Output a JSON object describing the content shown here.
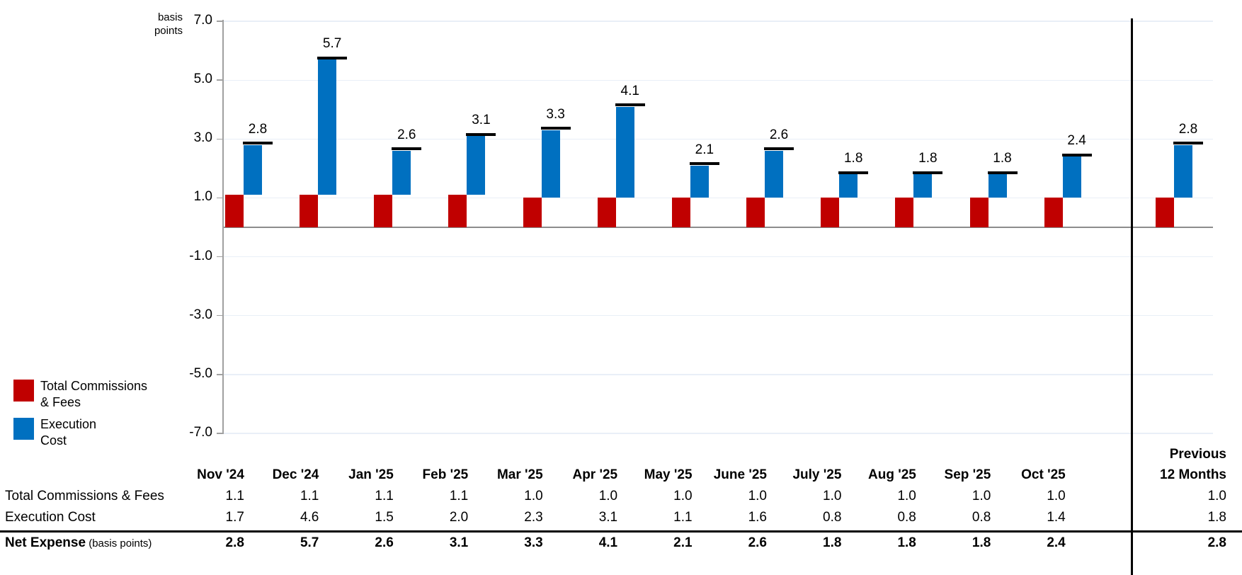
{
  "colors": {
    "commissions": "#C00000",
    "execution": "#0070C0",
    "gridline": "#E9EFF7",
    "axis": "#A0A0A0",
    "zero_line": "#8C8C8C",
    "marker": "#000000",
    "separator": "#000000",
    "rule": "#000000",
    "text": "#000000"
  },
  "axis": {
    "unit_label_line1": "basis",
    "unit_label_line2": "points"
  },
  "legend": {
    "items": [
      {
        "name": "Total Commissions & Fees",
        "line1": "Total Commissions",
        "line2": "& Fees",
        "color": "#C00000"
      },
      {
        "name": "Execution Cost",
        "line1": "Execution",
        "line2": "Cost",
        "color": "#0070C0"
      }
    ]
  },
  "chart_data": {
    "type": "bar",
    "subtype": "stacked-offset-columns-with-total-markers",
    "title": "",
    "unit": "basis points",
    "ylabel": "basis points",
    "ylim": [
      -7.0,
      7.0
    ],
    "yticks": [
      7.0,
      5.0,
      3.0,
      1.0,
      -1.0,
      -3.0,
      -5.0,
      -7.0
    ],
    "grid": true,
    "legend_position": "left",
    "separator_before_last_category": true,
    "categories": [
      "Nov '24",
      "Dec '24",
      "Jan '25",
      "Feb '25",
      "Mar '25",
      "Apr '25",
      "May '25",
      "June '25",
      "July '25",
      "Aug '25",
      "Sep '25",
      "Oct '25",
      "Previous 12 Months"
    ],
    "series": [
      {
        "name": "Total Commissions & Fees",
        "color": "#C00000",
        "values": [
          1.1,
          1.1,
          1.1,
          1.1,
          1.0,
          1.0,
          1.0,
          1.0,
          1.0,
          1.0,
          1.0,
          1.0,
          1.0
        ]
      },
      {
        "name": "Execution Cost",
        "color": "#0070C0",
        "values": [
          1.7,
          4.6,
          1.5,
          2.0,
          2.3,
          3.1,
          1.1,
          1.6,
          0.8,
          0.8,
          0.8,
          1.4,
          1.8
        ]
      }
    ],
    "totals": {
      "name": "Net Expense (basis points)",
      "values": [
        2.8,
        5.7,
        2.6,
        3.1,
        3.3,
        4.1,
        2.1,
        2.6,
        1.8,
        1.8,
        1.8,
        2.4,
        2.8
      ]
    }
  },
  "table": {
    "previous_header_line1": "Previous",
    "previous_header_line2": "12 Months",
    "month_headers": [
      "Nov '24",
      "Dec '24",
      "Jan '25",
      "Feb '25",
      "Mar '25",
      "Apr '25",
      "May '25",
      "June '25",
      "July '25",
      "Aug '25",
      "Sep '25",
      "Oct '25"
    ],
    "rows": [
      {
        "label": "Total Commissions & Fees",
        "suffix": "",
        "bold": false,
        "values": [
          "1.1",
          "1.1",
          "1.1",
          "1.1",
          "1.0",
          "1.0",
          "1.0",
          "1.0",
          "1.0",
          "1.0",
          "1.0",
          "1.0"
        ],
        "previous": "1.0"
      },
      {
        "label": "Execution Cost",
        "suffix": "",
        "bold": false,
        "values": [
          "1.7",
          "4.6",
          "1.5",
          "2.0",
          "2.3",
          "3.1",
          "1.1",
          "1.6",
          "0.8",
          "0.8",
          "0.8",
          "1.4"
        ],
        "previous": "1.8"
      },
      {
        "label": "Net Expense",
        "suffix": " (basis points)",
        "bold": true,
        "values": [
          "2.8",
          "5.7",
          "2.6",
          "3.1",
          "3.3",
          "4.1",
          "2.1",
          "2.6",
          "1.8",
          "1.8",
          "1.8",
          "2.4"
        ],
        "previous": "2.8"
      }
    ]
  }
}
